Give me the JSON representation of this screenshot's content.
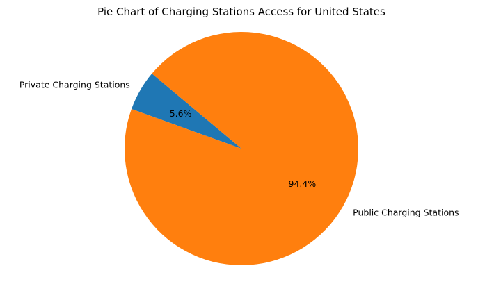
{
  "chart_data": {
    "type": "pie",
    "title": "Pie Chart of Charging Stations Access for United States",
    "start_angle_deg": 140,
    "direction": "counterclockwise",
    "slices": [
      {
        "label": "Private Charging Stations",
        "value": 5.6,
        "pct_label": "5.6%",
        "color": "#1f77b4"
      },
      {
        "label": "Public Charging Stations",
        "value": 94.4,
        "pct_label": "94.4%",
        "color": "#ff7f0e"
      }
    ]
  }
}
